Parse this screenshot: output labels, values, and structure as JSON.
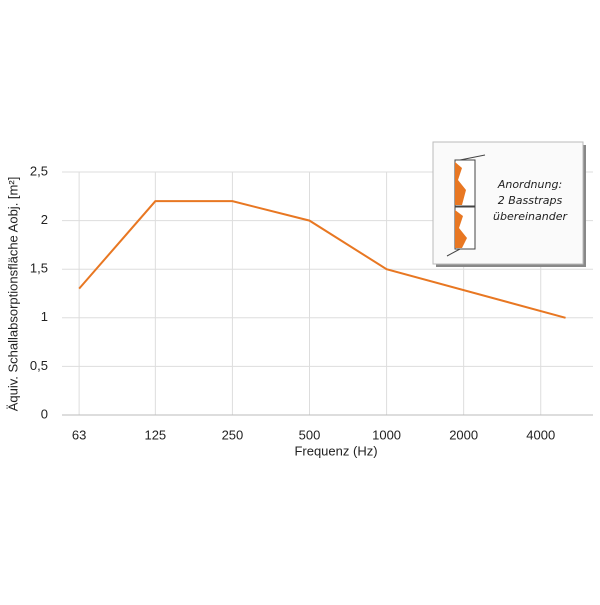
{
  "chart_data": {
    "type": "line",
    "x_label": "Frequenz (Hz)",
    "y_label": "Äquiv. Schallabsorptionsfläche Aobj. [m²]",
    "annotation": [
      "Anordnung:",
      "2 Basstraps",
      "übereinander"
    ],
    "x": [
      63,
      125,
      250,
      500,
      1000,
      5000
    ],
    "series": [
      {
        "name": "Basstraps",
        "color": "#e87722",
        "values": [
          1.3,
          2.2,
          2.2,
          2.0,
          1.5,
          1.0
        ]
      }
    ],
    "xscale": "log",
    "xlim": [
      54,
      6400
    ],
    "xticks": [
      63,
      125,
      250,
      500,
      1000,
      2000,
      4000
    ],
    "ylim": [
      0,
      2.5
    ],
    "yticks": [
      0,
      {
        "value": 0.5,
        "label": "0,5"
      },
      1,
      {
        "value": 1.5,
        "label": "1,5"
      },
      2,
      {
        "value": 2.5,
        "label": "2,5"
      }
    ],
    "grid": true
  }
}
